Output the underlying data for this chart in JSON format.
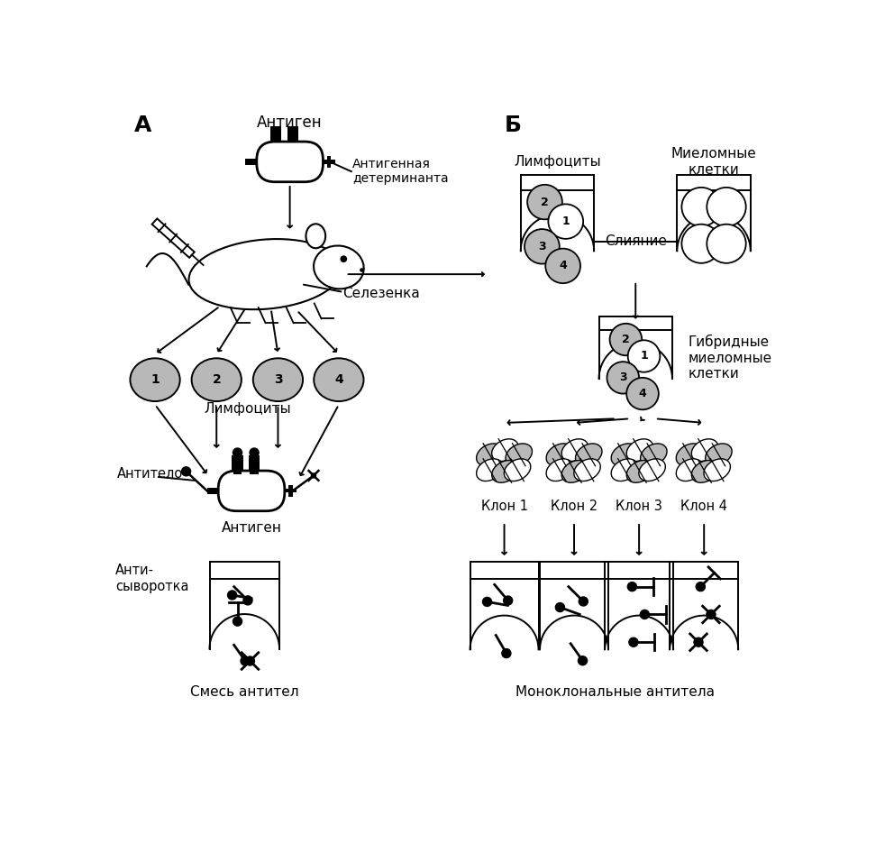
{
  "bg_color": "#ffffff",
  "black": "#000000",
  "gray_cell": "#b8b8b8",
  "label_A": "А",
  "label_B": "Б",
  "antigen_label": "Антиген",
  "antigenic_det_label": "Антигенная\nдетерминанта",
  "spleen_label": "Селезенка",
  "lymphocytes_label": "Лимфоциты",
  "antibody_label": "Антитело",
  "antigen_label2": "Антиген",
  "antiserum_label": "Анти-\nсыворотка",
  "mixed_ab_label": "Смесь антител",
  "lymphocytes_label2": "Лимфоциты",
  "myeloma_label": "Миеломные\nклетки",
  "fusion_label": "Слияние",
  "hybrid_label": "Гибридные\nмиеломные\nклетки",
  "clone_labels": [
    "Клон 1",
    "Клон 2",
    "Клон 3",
    "Клон 4"
  ],
  "monoclonal_label": "Моноклональные антитела"
}
